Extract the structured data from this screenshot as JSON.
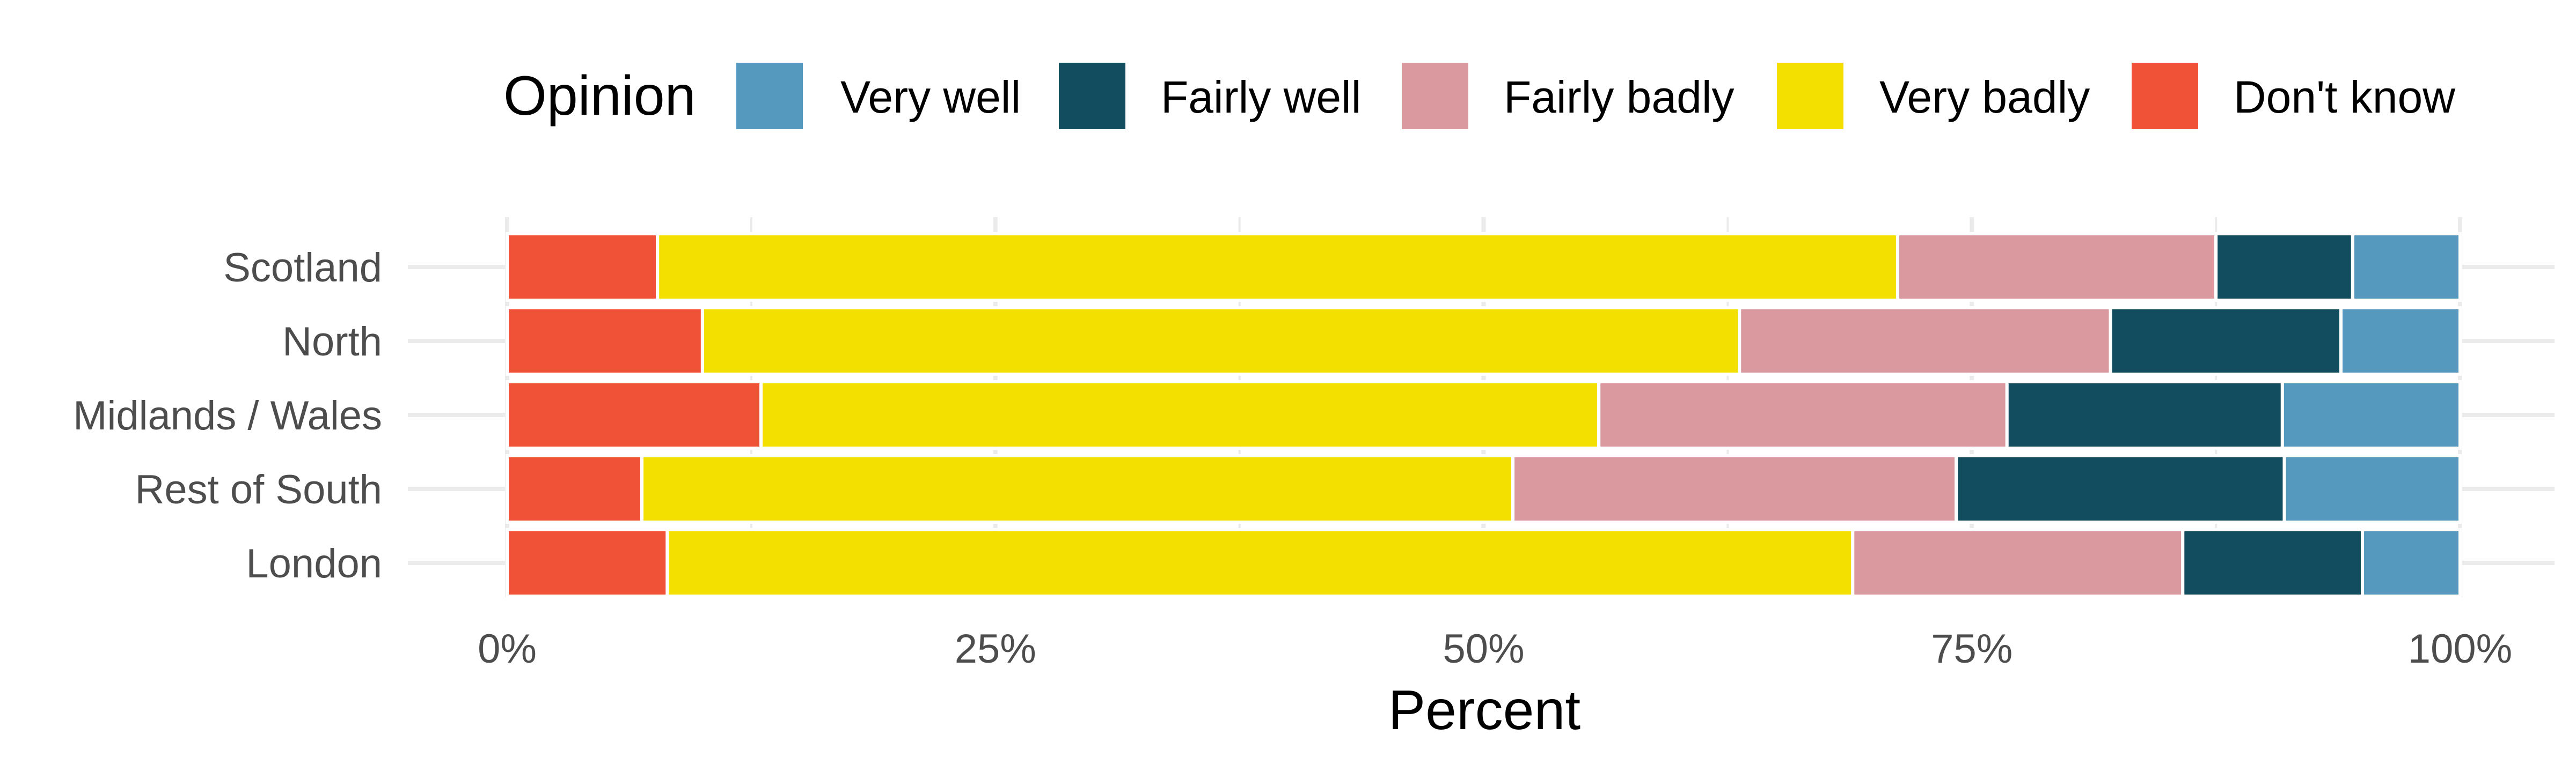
{
  "chart_data": {
    "type": "bar",
    "orientation": "horizontal",
    "stacked": true,
    "categories": [
      "Scotland",
      "North",
      "Midlands / Wales",
      "Rest of South",
      "London"
    ],
    "series": [
      {
        "name": "Don't know",
        "color": "#F05237",
        "values": [
          7.7,
          10.0,
          13.0,
          6.9,
          8.2
        ]
      },
      {
        "name": "Very badly",
        "color": "#F3DF00",
        "values": [
          63.5,
          53.1,
          42.9,
          44.6,
          60.7
        ]
      },
      {
        "name": "Fairly badly",
        "color": "#D9999E",
        "values": [
          16.3,
          19.0,
          20.9,
          22.7,
          16.9
        ]
      },
      {
        "name": "Fairly well",
        "color": "#124D5F",
        "values": [
          7.0,
          11.8,
          14.1,
          16.8,
          9.2
        ]
      },
      {
        "name": "Very well",
        "color": "#5599BF",
        "values": [
          5.5,
          6.1,
          9.1,
          9.0,
          5.0
        ]
      }
    ],
    "xlabel": "Percent",
    "ylabel": "",
    "xlim": [
      0,
      100
    ],
    "xticks": [
      0,
      25,
      50,
      75,
      100
    ],
    "xtick_labels": [
      "0%",
      "25%",
      "50%",
      "75%",
      "100%"
    ],
    "legend": {
      "title": "Opinion",
      "position": "top",
      "order": [
        "Very well",
        "Fairly well",
        "Fairly badly",
        "Very badly",
        "Don't know"
      ]
    },
    "grid": true
  }
}
